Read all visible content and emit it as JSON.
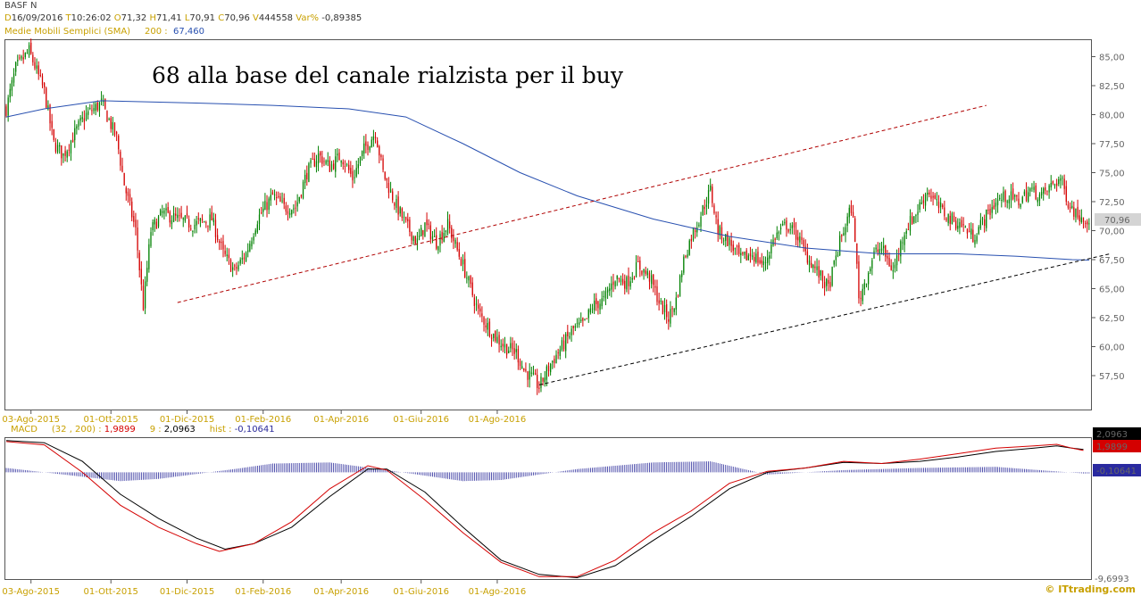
{
  "header": {
    "symbol": "BASF N",
    "date_prefix": "D",
    "date": "16/09/2016",
    "time_prefix": "T",
    "time": "10:26:02",
    "open_prefix": "O",
    "open": "71,32",
    "high_prefix": "H",
    "high": "71,41",
    "low_prefix": "L",
    "low": "70,91",
    "close_prefix": "C",
    "close": "70,96",
    "volume_prefix": "V",
    "volume": "444558",
    "var_prefix": "Var%",
    "var": "-0,89385",
    "sma_label": "Medie Mobili Semplici (SMA)",
    "sma_period": "200 :",
    "sma_value": "67,460"
  },
  "annotation": "68 alla base del canale rialzista per il buy",
  "macd_header": {
    "label": "MACD",
    "params": "(32 , 200) :",
    "macd_value": "1,9899",
    "signal_period": "9 :",
    "signal_value": "2,0963",
    "hist_label": "hist :",
    "hist_value": "-0,10641"
  },
  "brand": "© ITtrading.com",
  "colors": {
    "up": "#008000",
    "down": "#d40000",
    "sma": "#2850b0",
    "channel_upper": "#b00000",
    "channel_lower": "#000000",
    "macd": "#d40000",
    "signal": "#000000",
    "hist": "#2a2a9a"
  },
  "chart_data": [
    {
      "type": "candlestick",
      "title": "BASF N",
      "x_tick_labels": [
        "03-Ago-2015",
        "01-Ott-2015",
        "01-Dic-2015",
        "01-Feb-2016",
        "01-Apr-2016",
        "01-Giu-2016",
        "01-Ago-2016"
      ],
      "y_tick_labels": [
        "57,50",
        "60,00",
        "62,50",
        "65,00",
        "67,50",
        "70,00",
        "72,50",
        "75,00",
        "77,50",
        "80,00",
        "82,50",
        "85,00"
      ],
      "ylim": [
        54.5,
        86.5
      ],
      "last_price_label": "70,96",
      "price_path": [
        [
          0,
          80.5
        ],
        [
          5,
          84
        ],
        [
          12,
          85.5
        ],
        [
          20,
          82
        ],
        [
          25,
          77.5
        ],
        [
          30,
          76.5
        ],
        [
          38,
          79
        ],
        [
          42,
          80
        ],
        [
          50,
          81
        ],
        [
          58,
          78
        ],
        [
          62,
          74
        ],
        [
          68,
          70
        ],
        [
          72,
          63.5
        ],
        [
          76,
          70
        ],
        [
          82,
          71.5
        ],
        [
          90,
          71
        ],
        [
          98,
          70.5
        ],
        [
          108,
          71
        ],
        [
          114,
          68
        ],
        [
          120,
          66.5
        ],
        [
          126,
          68
        ],
        [
          132,
          71
        ],
        [
          140,
          73
        ],
        [
          146,
          72
        ],
        [
          152,
          72
        ],
        [
          158,
          75
        ],
        [
          164,
          76.5
        ],
        [
          170,
          75.5
        ],
        [
          176,
          76.5
        ],
        [
          182,
          74.5
        ],
        [
          188,
          77
        ],
        [
          194,
          78.5
        ],
        [
          198,
          75
        ],
        [
          204,
          72.5
        ],
        [
          210,
          70.5
        ],
        [
          216,
          69
        ],
        [
          220,
          70.5
        ],
        [
          226,
          69
        ],
        [
          232,
          70.5
        ],
        [
          240,
          67
        ],
        [
          248,
          63
        ],
        [
          256,
          61
        ],
        [
          262,
          60
        ],
        [
          268,
          59.5
        ],
        [
          272,
          58
        ],
        [
          278,
          57
        ],
        [
          280,
          56.5
        ],
        [
          286,
          58.5
        ],
        [
          292,
          60
        ],
        [
          298,
          61.5
        ],
        [
          304,
          62
        ],
        [
          308,
          63.5
        ],
        [
          314,
          64
        ],
        [
          320,
          66
        ],
        [
          326,
          65.5
        ],
        [
          332,
          67
        ],
        [
          338,
          66
        ],
        [
          344,
          63.5
        ],
        [
          348,
          62.5
        ],
        [
          352,
          64
        ],
        [
          356,
          67.5
        ],
        [
          360,
          69.5
        ],
        [
          364,
          71
        ],
        [
          370,
          73.5
        ],
        [
          374,
          70
        ],
        [
          380,
          69
        ],
        [
          386,
          67.5
        ],
        [
          392,
          68
        ],
        [
          398,
          67
        ],
        [
          404,
          69.5
        ],
        [
          410,
          70.5
        ],
        [
          416,
          69.5
        ],
        [
          420,
          68
        ],
        [
          426,
          66.5
        ],
        [
          432,
          65
        ],
        [
          438,
          69
        ],
        [
          444,
          72
        ],
        [
          446,
          69.5
        ],
        [
          448,
          64
        ],
        [
          452,
          66
        ],
        [
          456,
          68
        ],
        [
          460,
          68.5
        ],
        [
          466,
          66.5
        ],
        [
          472,
          70
        ],
        [
          478,
          71.5
        ],
        [
          484,
          73.5
        ],
        [
          490,
          72
        ],
        [
          496,
          71
        ],
        [
          502,
          70.5
        ],
        [
          508,
          69.5
        ],
        [
          514,
          71
        ],
        [
          520,
          72.5
        ],
        [
          526,
          73
        ],
        [
          532,
          72.5
        ],
        [
          538,
          73.5
        ],
        [
          544,
          73
        ],
        [
          550,
          74
        ],
        [
          554,
          74.5
        ],
        [
          558,
          72.5
        ],
        [
          562,
          71.5
        ],
        [
          566,
          71.2
        ],
        [
          569,
          70.96
        ]
      ],
      "sma_200": [
        [
          0,
          79.8
        ],
        [
          20,
          80.5
        ],
        [
          50,
          81.2
        ],
        [
          100,
          81
        ],
        [
          140,
          80.8
        ],
        [
          180,
          80.5
        ],
        [
          210,
          79.8
        ],
        [
          240,
          77.5
        ],
        [
          270,
          75
        ],
        [
          300,
          73
        ],
        [
          340,
          71
        ],
        [
          380,
          69.5
        ],
        [
          420,
          68.5
        ],
        [
          460,
          68
        ],
        [
          500,
          68
        ],
        [
          530,
          67.8
        ],
        [
          560,
          67.5
        ],
        [
          569,
          67.46
        ]
      ],
      "channel_upper": [
        [
          90,
          63.8
        ],
        [
          515,
          80.8
        ]
      ],
      "channel_lower": [
        [
          280,
          56.7
        ],
        [
          580,
          68
        ]
      ]
    },
    {
      "type": "line",
      "title": "MACD (32 , 200)",
      "x_tick_labels": [
        "03-Ago-2015",
        "01-Ott-2015",
        "01-Dic-2015",
        "01-Feb-2016",
        "01-Apr-2016",
        "01-Giu-2016",
        "01-Ago-2016"
      ],
      "y_tick_labels": [
        "-9,6993"
      ],
      "ylim": [
        -9.8,
        3.2
      ],
      "value_labels": [
        "2,0963",
        "1,9899",
        "-0,10641"
      ],
      "series": [
        {
          "name": "MACD",
          "values": [
            [
              0,
              2.8
            ],
            [
              20,
              2.5
            ],
            [
              40,
              0
            ],
            [
              60,
              -3
            ],
            [
              80,
              -5
            ],
            [
              100,
              -6.5
            ],
            [
              112,
              -7.2
            ],
            [
              130,
              -6.5
            ],
            [
              150,
              -4.5
            ],
            [
              170,
              -1.5
            ],
            [
              190,
              0.6
            ],
            [
              200,
              0.2
            ],
            [
              220,
              -2.5
            ],
            [
              240,
              -5.5
            ],
            [
              260,
              -8.2
            ],
            [
              280,
              -9.5
            ],
            [
              300,
              -9.5
            ],
            [
              320,
              -8
            ],
            [
              340,
              -5.5
            ],
            [
              360,
              -3.5
            ],
            [
              380,
              -1
            ],
            [
              400,
              0.1
            ],
            [
              420,
              0.4
            ],
            [
              440,
              1
            ],
            [
              460,
              0.8
            ],
            [
              480,
              1.2
            ],
            [
              500,
              1.7
            ],
            [
              520,
              2.2
            ],
            [
              540,
              2.4
            ],
            [
              552,
              2.55
            ],
            [
              560,
              2.2
            ],
            [
              566,
              1.99
            ]
          ]
        },
        {
          "name": "Signal",
          "values": [
            [
              0,
              2.9
            ],
            [
              20,
              2.7
            ],
            [
              40,
              1
            ],
            [
              60,
              -2
            ],
            [
              80,
              -4.2
            ],
            [
              100,
              -6
            ],
            [
              115,
              -7
            ],
            [
              130,
              -6.5
            ],
            [
              150,
              -5
            ],
            [
              170,
              -2.2
            ],
            [
              190,
              0.3
            ],
            [
              200,
              0.3
            ],
            [
              220,
              -1.8
            ],
            [
              240,
              -5
            ],
            [
              260,
              -8
            ],
            [
              280,
              -9.3
            ],
            [
              300,
              -9.6
            ],
            [
              320,
              -8.5
            ],
            [
              340,
              -6.2
            ],
            [
              360,
              -4
            ],
            [
              380,
              -1.5
            ],
            [
              400,
              0
            ],
            [
              420,
              0.4
            ],
            [
              440,
              0.9
            ],
            [
              460,
              0.8
            ],
            [
              480,
              1
            ],
            [
              500,
              1.4
            ],
            [
              520,
              1.9
            ],
            [
              540,
              2.2
            ],
            [
              552,
              2.4
            ],
            [
              560,
              2.2
            ],
            [
              566,
              2.09
            ]
          ]
        },
        {
          "name": "hist",
          "values": [
            [
              0,
              0.4
            ],
            [
              40,
              -0.4
            ],
            [
              60,
              -0.8
            ],
            [
              80,
              -0.6
            ],
            [
              120,
              0.3
            ],
            [
              140,
              0.8
            ],
            [
              170,
              0.9
            ],
            [
              200,
              0.2
            ],
            [
              240,
              -0.8
            ],
            [
              260,
              -0.7
            ],
            [
              300,
              0.3
            ],
            [
              340,
              0.9
            ],
            [
              370,
              1
            ],
            [
              400,
              -0.2
            ],
            [
              440,
              0.2
            ],
            [
              480,
              0.4
            ],
            [
              520,
              0.5
            ],
            [
              566,
              -0.1
            ]
          ]
        }
      ]
    }
  ]
}
